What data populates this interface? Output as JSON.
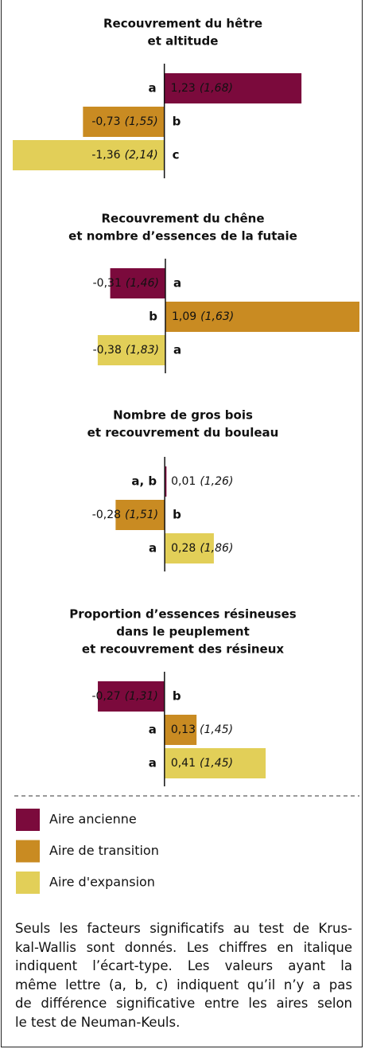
{
  "chart_data": [
    {
      "type": "bar",
      "orientation": "horizontal",
      "title": [
        "Recouvrement du hêtre",
        "et altitude"
      ],
      "values": [
        1.23,
        -0.73,
        -1.36
      ],
      "value_labels": [
        "1,23",
        "-0,73",
        "-1,36"
      ],
      "sd": [
        1.68,
        1.55,
        2.14
      ],
      "sd_labels": [
        "(1,68)",
        "(1,55)",
        "(2,14)"
      ],
      "letters": [
        "a",
        "b",
        "c"
      ],
      "xlim": [
        -1.46,
        1.75
      ]
    },
    {
      "type": "bar",
      "orientation": "horizontal",
      "title": [
        "Recouvrement du chêne",
        "et nombre d’essences de la futaie"
      ],
      "values": [
        -0.31,
        1.09,
        -0.38
      ],
      "value_labels": [
        "-0,31",
        "1,09",
        "-0,38"
      ],
      "sd": [
        1.46,
        1.63,
        1.83
      ],
      "sd_labels": [
        "(1,46)",
        "(1,63)",
        "(1,83)"
      ],
      "letters": [
        "a",
        "b",
        "a"
      ],
      "xlim": [
        -0.92,
        1.09
      ]
    },
    {
      "type": "bar",
      "orientation": "horizontal",
      "title": [
        "Nombre de gros bois",
        "et recouvrement du bouleau"
      ],
      "values": [
        0.01,
        -0.28,
        0.28
      ],
      "value_labels": [
        "0,01",
        "-0,28",
        "0,28"
      ],
      "sd": [
        1.26,
        1.51,
        1.86
      ],
      "sd_labels": [
        "(1,26)",
        "(1,51)",
        "(1,86)"
      ],
      "letters": [
        "a, b",
        "b",
        "a"
      ],
      "xlim": [
        -0.93,
        1.11
      ]
    },
    {
      "type": "bar",
      "orientation": "horizontal",
      "title": [
        "Proportion d’essences résineuses",
        "dans le peuplement",
        "et recouvrement des résineux"
      ],
      "values": [
        -0.27,
        0.13,
        0.41
      ],
      "value_labels": [
        "-0,27",
        "0,13",
        "0,41"
      ],
      "sd": [
        1.31,
        1.45,
        1.45
      ],
      "sd_labels": [
        "(1,31)",
        "(1,45)",
        "(1,45)"
      ],
      "letters": [
        "b",
        "a",
        "a"
      ],
      "xlim": [
        -0.66,
        0.79
      ]
    }
  ],
  "legend": [
    {
      "name": "Aire ancienne",
      "color": "#7b0a3c"
    },
    {
      "name": "Aire de transition",
      "color": "#c98b22"
    },
    {
      "name": "Aire d'expansion",
      "color": "#e2cf58"
    }
  ],
  "note": [
    "Seuls les facteurs significatifs au test de Krus-",
    "kal-Wallis sont donnés. Les chiffres en italique",
    "indiquent l’écart-type. Les valeurs ayant la",
    "même lettre (a, b, c) indiquent qu’il n’y a pas",
    "de différence significative entre les aires selon",
    "le test de Neuman-Keuls."
  ]
}
